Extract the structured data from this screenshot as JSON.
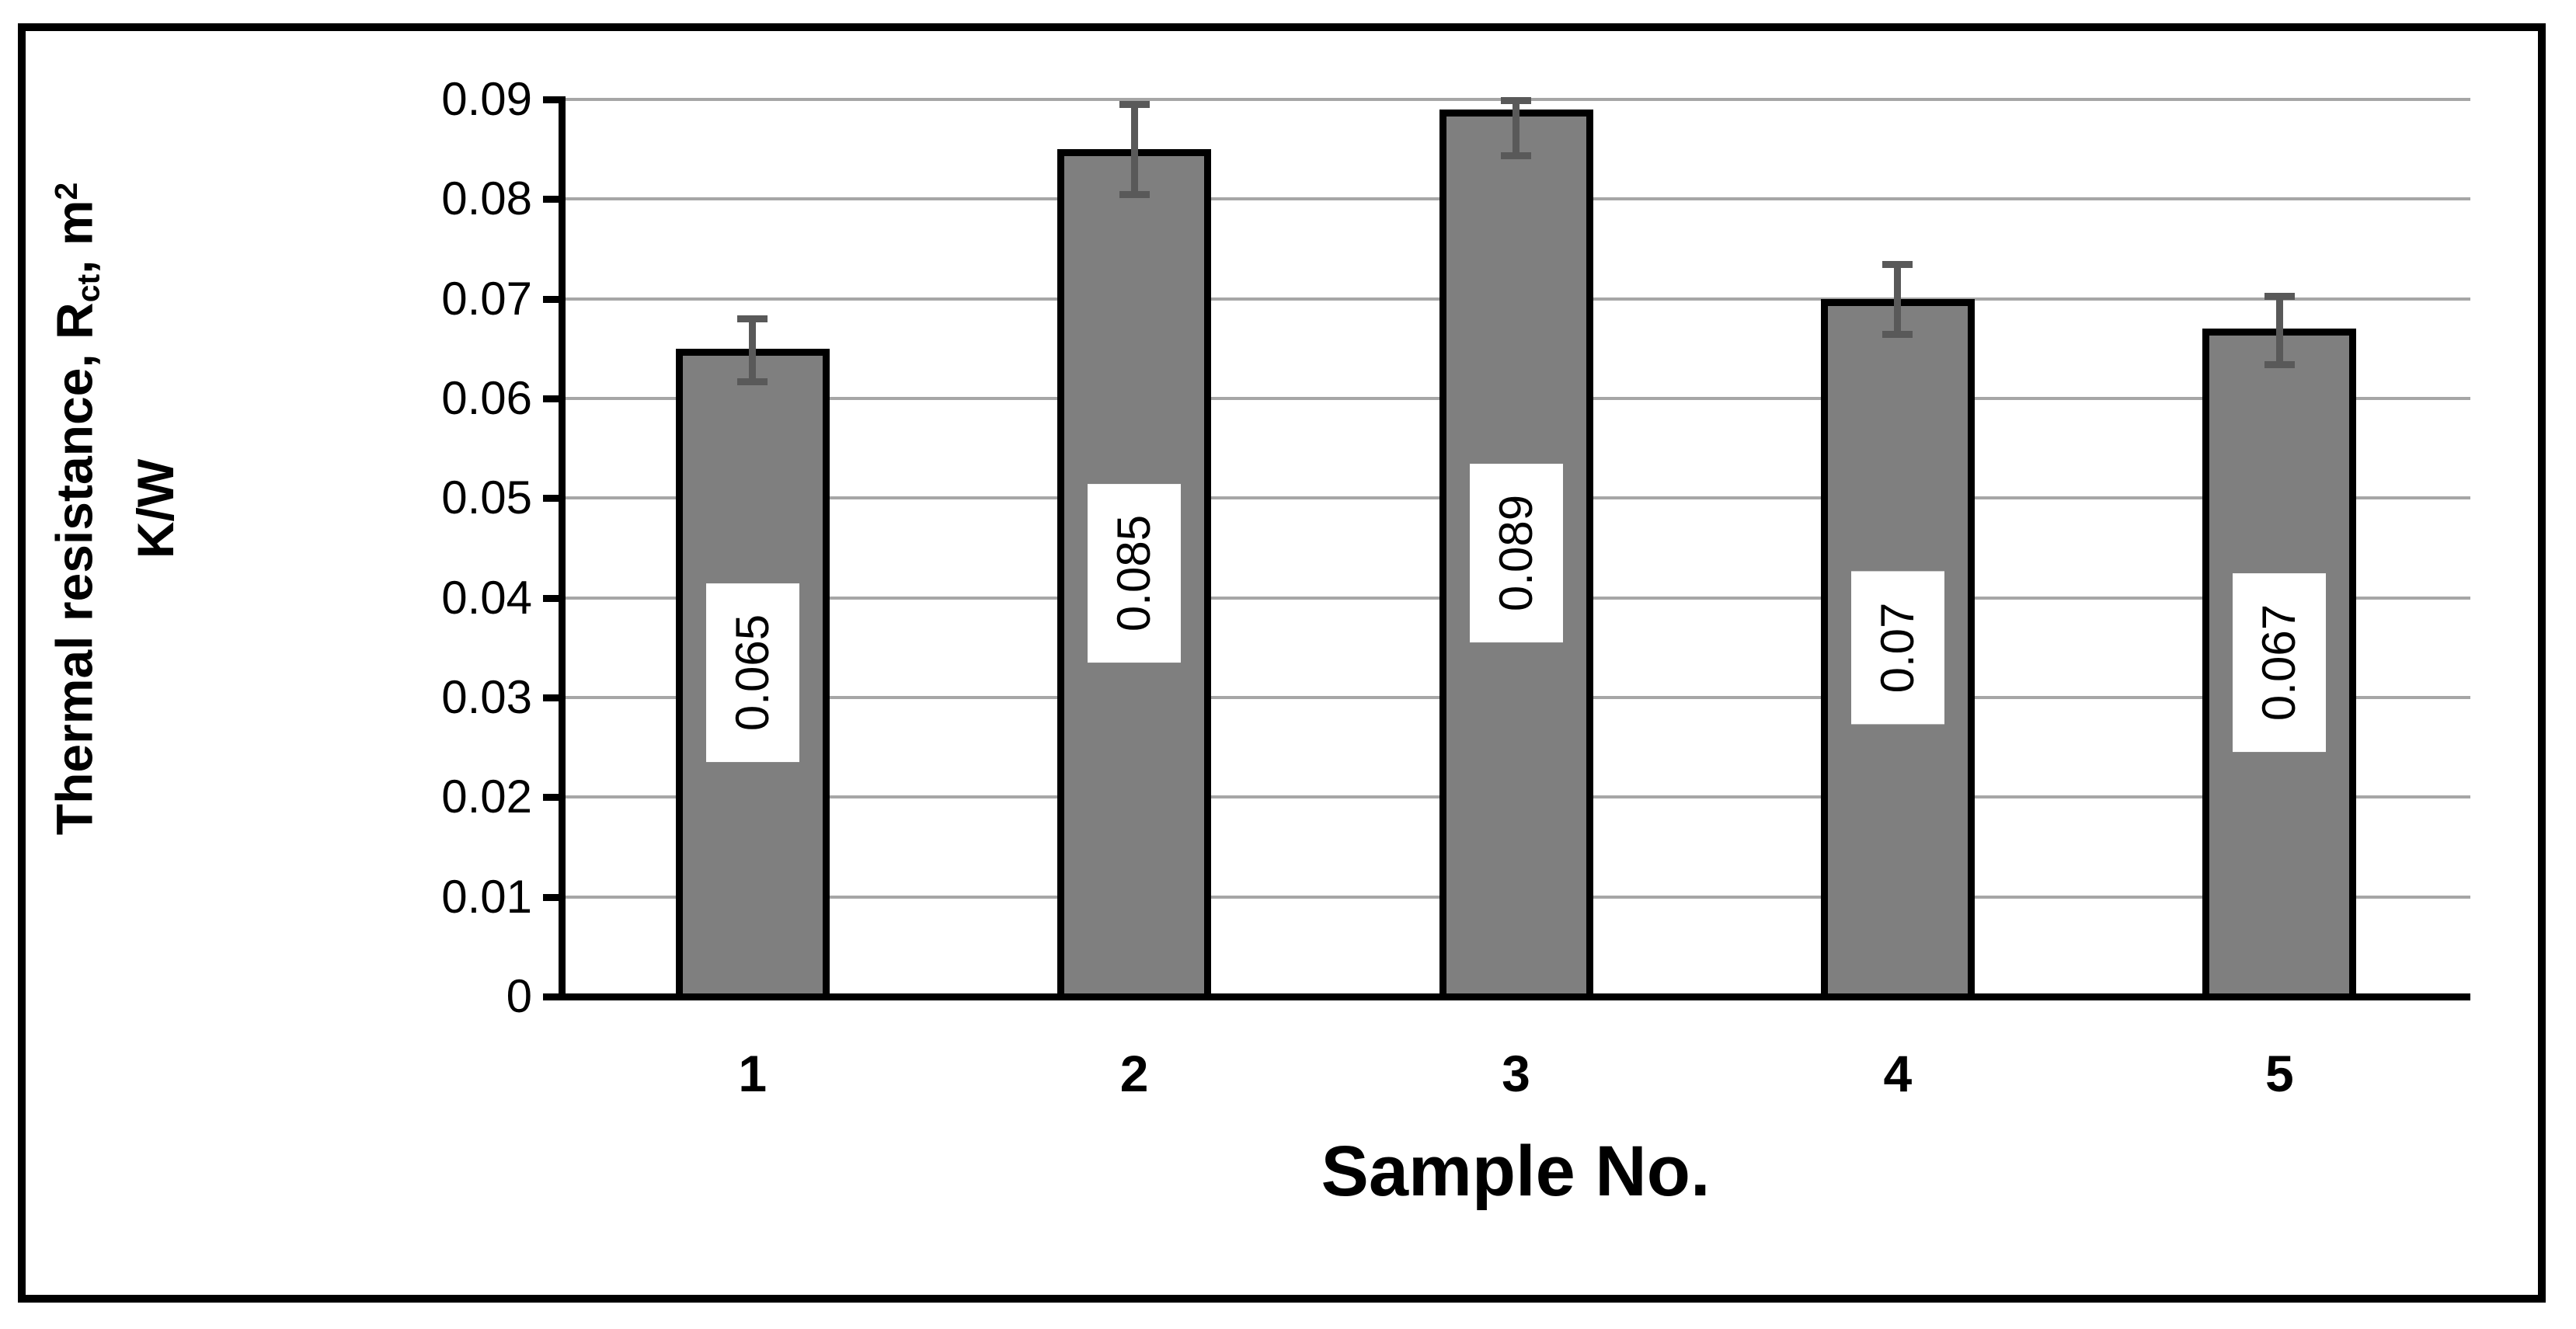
{
  "figure": {
    "background": "#ffffff",
    "frame_color": "#000000"
  },
  "chart_data": {
    "type": "bar",
    "title": "",
    "xlabel": "Sample No.",
    "ylabel": "Thermal resistance, Rct, m2 K/W",
    "ylabel_parts": {
      "line1_pre": "Thermal resistance, R",
      "line1_sub": "ct",
      "line1_mid": ", m",
      "line1_sup": "2",
      "line2": "K/W"
    },
    "categories": [
      "1",
      "2",
      "3",
      "4",
      "5"
    ],
    "values": [
      0.065,
      0.085,
      0.089,
      0.07,
      0.067
    ],
    "data_labels": [
      "0.065",
      "0.085",
      "0.089",
      "0.07",
      "0.067"
    ],
    "error_top": [
      0.068,
      0.0895,
      0.0899,
      0.0735,
      0.0703
    ],
    "error_bottom": [
      0.0617,
      0.0805,
      0.0844,
      0.0665,
      0.0634
    ],
    "ylim": [
      0,
      0.09
    ],
    "y_ticks": [
      0,
      0.01,
      0.02,
      0.03,
      0.04,
      0.05,
      0.06,
      0.07,
      0.08,
      0.09
    ],
    "y_tick_labels": [
      "0",
      "0.01",
      "0.02",
      "0.03",
      "0.04",
      "0.05",
      "0.06",
      "0.07",
      "0.08",
      "0.09"
    ],
    "grid": true,
    "legend": false,
    "colors": {
      "bar_fill": "#7f7f7f",
      "bar_border": "#000000",
      "error_bar": "#595959",
      "gridline": "#a6a6a6",
      "axis": "#000000",
      "label_background": "#ffffff",
      "label_text": "#000000"
    }
  }
}
